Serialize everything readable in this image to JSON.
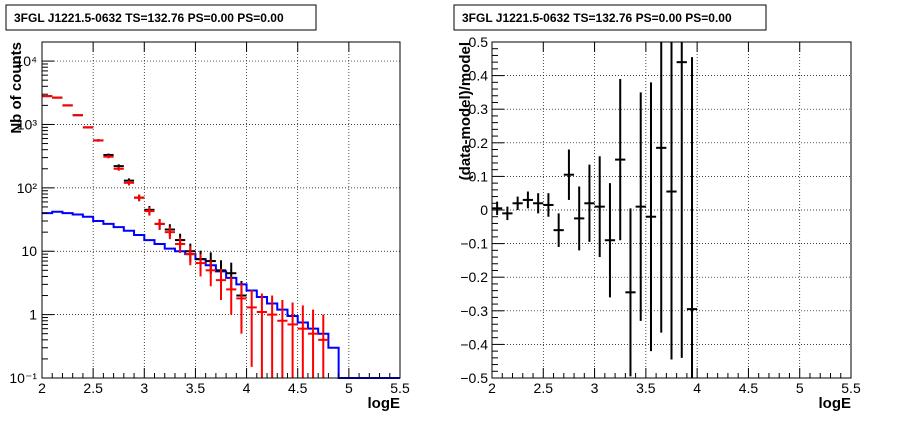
{
  "chart_data": [
    {
      "type": "histogram-errorbars",
      "title": "3FGL J1221.5-0632 TS=132.76 PS=0.00 PS=0.00",
      "xlabel": "logE",
      "ylabel": "Nb of counts",
      "xlim": [
        2,
        5.5
      ],
      "ylim": [
        0.1,
        20000
      ],
      "yscale": "log",
      "grid": true,
      "xticks": [
        "2",
        "2.5",
        "3",
        "3.5",
        "4",
        "4.5",
        "5",
        "5.5"
      ],
      "yticks": [
        {
          "value": 0.1,
          "label": "10⁻¹"
        },
        {
          "value": 1,
          "label": "1"
        },
        {
          "value": 10,
          "label": "10"
        },
        {
          "value": 100,
          "label": "10²"
        },
        {
          "value": 1000,
          "label": "10³"
        },
        {
          "value": 10000,
          "label": "10⁴"
        }
      ],
      "bin_width": 0.1,
      "series": [
        {
          "kind": "step",
          "color": "#0000ff",
          "x": [
            2.0,
            2.1,
            2.2,
            2.3,
            2.4,
            2.5,
            2.6,
            2.7,
            2.8,
            2.9,
            3.0,
            3.1,
            3.2,
            3.3,
            3.4,
            3.5,
            3.6,
            3.7,
            3.8,
            3.9,
            4.0,
            4.1,
            4.2,
            4.3,
            4.4,
            4.5,
            4.6,
            4.7,
            4.8,
            4.9,
            5.0,
            5.1,
            5.2,
            5.3,
            5.4
          ],
          "values": [
            40,
            42,
            40,
            38,
            35,
            30,
            27,
            24,
            21,
            18,
            15,
            13,
            11,
            10,
            9,
            7.5,
            6,
            4.8,
            3.8,
            3.0,
            2.4,
            1.9,
            1.5,
            1.2,
            0.95,
            0.75,
            0.6,
            0.5,
            0.3,
            0.1,
            0.1,
            0.1,
            0.1,
            0.1,
            0.1
          ]
        },
        {
          "kind": "errorbar",
          "color": "#000000",
          "x": [
            2.05,
            2.15,
            2.25,
            2.35,
            2.45,
            2.55,
            2.65,
            2.75,
            2.85,
            2.95,
            3.05,
            3.15,
            3.25,
            3.35,
            3.45,
            3.55,
            3.65,
            3.75,
            3.85,
            3.95
          ],
          "values": [
            2800,
            2650,
            2000,
            1400,
            900,
            560,
            330,
            220,
            130,
            70,
            45,
            27,
            22,
            15,
            10,
            7.5,
            7,
            5,
            4.5,
            2
          ],
          "err_low": [
            53,
            51,
            45,
            37,
            30,
            24,
            18,
            15,
            11,
            8.4,
            6.7,
            5.2,
            4.7,
            3.9,
            3.2,
            2.7,
            2.6,
            2.2,
            2.1,
            1.4
          ],
          "err_high": [
            53,
            51,
            45,
            37,
            30,
            24,
            18,
            15,
            11,
            8.4,
            6.7,
            5.2,
            4.7,
            3.9,
            3.2,
            2.7,
            2.6,
            2.2,
            2.1,
            1.4
          ]
        },
        {
          "kind": "errorbar",
          "color": "#ff0000",
          "x": [
            2.05,
            2.15,
            2.25,
            2.35,
            2.45,
            2.55,
            2.65,
            2.75,
            2.85,
            2.95,
            3.05,
            3.15,
            3.25,
            3.35,
            3.45,
            3.55,
            3.65,
            3.75,
            3.85,
            3.95,
            4.05,
            4.15,
            4.25,
            4.35,
            4.45,
            4.55,
            4.65,
            4.75
          ],
          "values": [
            2800,
            2650,
            2000,
            1400,
            900,
            560,
            310,
            200,
            120,
            70,
            43,
            27,
            20,
            13,
            9,
            6.5,
            5,
            3.5,
            2.5,
            1.8,
            1.3,
            1.1,
            1,
            0.8,
            0.7,
            0.6,
            0.5,
            0.4
          ],
          "err_low": [
            53,
            51,
            45,
            37,
            30,
            24,
            18,
            14,
            11,
            8.4,
            6.6,
            5.2,
            4.5,
            3.6,
            3,
            2.5,
            2.2,
            1.8,
            1.5,
            1.3,
            1.15,
            1.05,
            0.98,
            0.78,
            0.68,
            0.58,
            0.48,
            0.38
          ],
          "err_high": [
            53,
            51,
            45,
            37,
            30,
            24,
            18,
            14,
            11,
            8.4,
            6.6,
            5.2,
            4.5,
            3.6,
            3,
            2.5,
            2.2,
            1.8,
            1.5,
            1.3,
            1.15,
            1.05,
            1,
            0.9,
            0.85,
            0.8,
            0.7,
            0.6
          ]
        }
      ]
    },
    {
      "type": "errorbar",
      "title": "3FGL J1221.5-0632 TS=132.76 PS=0.00 PS=0.00",
      "xlabel": "logE",
      "ylabel": "(data-model)/model",
      "xlim": [
        2,
        5.5
      ],
      "ylim": [
        -0.5,
        0.5
      ],
      "grid": true,
      "xticks": [
        "2",
        "2.5",
        "3",
        "3.5",
        "4",
        "4.5",
        "5",
        "5.5"
      ],
      "yticks": [
        "−0.5",
        "−0.4",
        "−0.3",
        "−0.2",
        "−0.1",
        "0",
        "0.1",
        "0.2",
        "0.3",
        "0.4",
        "0.5"
      ],
      "bin_width": 0.1,
      "series": [
        {
          "kind": "errorbar",
          "color": "#000000",
          "x": [
            2.05,
            2.15,
            2.25,
            2.35,
            2.45,
            2.55,
            2.65,
            2.75,
            2.85,
            2.95,
            3.05,
            3.15,
            3.25,
            3.35,
            3.45,
            3.55,
            3.65,
            3.75,
            3.85,
            3.95
          ],
          "values": [
            0.005,
            -0.01,
            0.02,
            0.03,
            0.02,
            0.015,
            -0.06,
            0.105,
            -0.025,
            0.02,
            0.01,
            -0.09,
            0.15,
            -0.245,
            0.01,
            -0.02,
            0.185,
            0.055,
            0.44,
            -0.295
          ],
          "err_low": [
            0.02,
            0.02,
            0.02,
            0.025,
            0.03,
            0.035,
            0.05,
            0.075,
            0.095,
            0.115,
            0.15,
            0.17,
            0.24,
            0.25,
            0.34,
            0.4,
            0.55,
            0.5,
            0.88,
            0.7
          ],
          "err_high": [
            0.02,
            0.02,
            0.02,
            0.025,
            0.03,
            0.035,
            0.05,
            0.075,
            0.095,
            0.115,
            0.15,
            0.17,
            0.24,
            0.25,
            0.34,
            0.4,
            0.55,
            0.5,
            0.88,
            0.75
          ]
        }
      ]
    }
  ]
}
